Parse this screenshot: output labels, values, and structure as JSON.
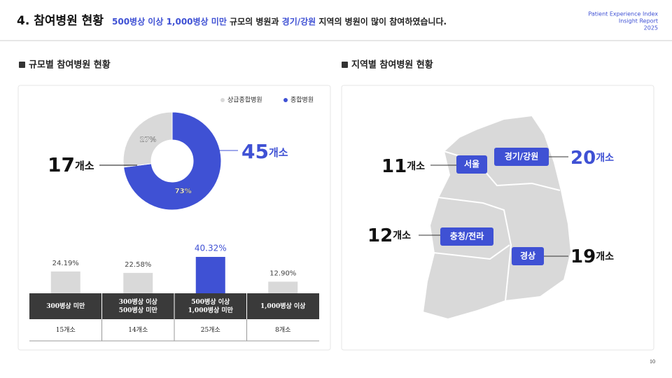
{
  "header": {
    "title": "4. 참여병원 현황",
    "subtitle": [
      "500병상 이상 1,000병상 미만",
      " 규모의 병원과 ",
      "경기/강원",
      " 지역의 병원이 많이 참여하였습니다."
    ],
    "brand": [
      "Patient Experience Index",
      "Insight Report",
      "2025"
    ]
  },
  "sections": [
    "규모별 참여병원 현황",
    "지역별 참여병원 현황"
  ],
  "chart_data": [
    {
      "type": "pie",
      "categories": [
        "상급종합병원",
        "종합병원"
      ],
      "values": [
        27,
        73
      ],
      "value_labels": [
        "27%",
        "73%"
      ],
      "colors": [
        "#d9d9d9",
        "#3f51d4"
      ],
      "counts": [
        17,
        45
      ],
      "count_unit": "개소"
    },
    {
      "type": "bar",
      "categories": [
        [
          "300병상 미만"
        ],
        [
          "300병상 이상",
          "500병상 미만"
        ],
        [
          "500병상 이상",
          "1,000병상 미만"
        ],
        [
          "1,000병상 이상"
        ]
      ],
      "values": [
        24.19,
        22.58,
        40.32,
        12.9
      ],
      "value_labels": [
        "24.19%",
        "22.58%",
        "40.32%",
        "12.90%"
      ],
      "colors": [
        "#d9d9d9",
        "#d9d9d9",
        "#3f51d4",
        "#d9d9d9"
      ],
      "counts": [
        "15개소",
        "14개소",
        "25개소",
        "8개소"
      ]
    }
  ],
  "map": {
    "regions": [
      {
        "name": "서울",
        "count": 11,
        "unit": "개소"
      },
      {
        "name": "경기/강원",
        "count": 20,
        "unit": "개소"
      },
      {
        "name": "충청/전라",
        "count": 12,
        "unit": "개소"
      },
      {
        "name": "경상",
        "count": 19,
        "unit": "개소"
      }
    ]
  },
  "page_number": "10"
}
